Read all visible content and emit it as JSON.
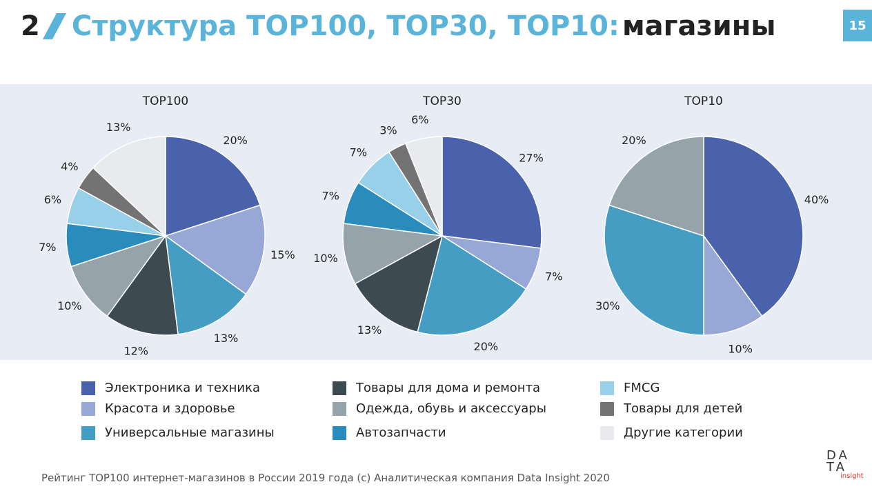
{
  "header": {
    "number": "2",
    "title_blue": "Структура TOP100, TOP30, TOP10:",
    "title_dark": "магазины",
    "page": "15"
  },
  "colors": {
    "electronics": "#4a62ac",
    "beauty": "#98a8d6",
    "universal": "#469dc3",
    "home": "#3e4a52",
    "clothes": "#97a3ab",
    "auto": "#2a8bbd",
    "fmcg": "#98d0ea",
    "kids": "#737373",
    "other": "#e8eaed",
    "accent": "#5ab4d9",
    "panel": "#e8edf5"
  },
  "legend": [
    {
      "label": "Электроника и техника",
      "color": "#4a62ac"
    },
    {
      "label": "Красота и здоровье",
      "color": "#98a8d6"
    },
    {
      "label": "Универсальные магазины",
      "color": "#469dc3"
    },
    {
      "label": "Товары для дома и ремонта",
      "color": "#3e4a52"
    },
    {
      "label": "Одежда, обувь и аксессуары",
      "color": "#97a3ab"
    },
    {
      "label": "Автозапчасти",
      "color": "#2a8bbd"
    },
    {
      "label": "FMCG",
      "color": "#98d0ea"
    },
    {
      "label": "Товары для детей",
      "color": "#737373"
    },
    {
      "label": "Другие категории",
      "color": "#e8eaed"
    }
  ],
  "chart_data": [
    {
      "type": "pie",
      "title": "TOP100",
      "categories": [
        "Электроника и техника",
        "Красота и здоровье",
        "Универсальные магазины",
        "Товары для дома и ремонта",
        "Одежда, обувь и аксессуары",
        "Автозапчасти",
        "FMCG",
        "Товары для детей",
        "Другие категории"
      ],
      "values": [
        20,
        15,
        13,
        12,
        10,
        7,
        6,
        4,
        13
      ],
      "labels": [
        "20%",
        "15%",
        "13%",
        "12%",
        "10%",
        "7%",
        "6%",
        "4%",
        "13%"
      ]
    },
    {
      "type": "pie",
      "title": "TOP30",
      "categories": [
        "Электроника и техника",
        "Красота и здоровье",
        "Универсальные магазины",
        "Товары для дома и ремонта",
        "Одежда, обувь и аксессуары",
        "Автозапчасти",
        "FMCG",
        "Товары для детей",
        "Другие категории"
      ],
      "values": [
        27,
        7,
        20,
        13,
        10,
        7,
        7,
        3,
        6
      ],
      "labels": [
        "27%",
        "7%",
        "20%",
        "13%",
        "10%",
        "7%",
        "7%",
        "3%",
        "6%"
      ]
    },
    {
      "type": "pie",
      "title": "TOP10",
      "categories": [
        "Электроника и техника",
        "Красота и здоровье",
        "Универсальные магазины",
        "Одежда, обувь и аксессуары"
      ],
      "values": [
        40,
        10,
        30,
        20
      ],
      "labels": [
        "40%",
        "10%",
        "30%",
        "20%"
      ]
    }
  ],
  "footer": "Рейтинг TOP100 интернет-магазинов в России 2019 года (с) Аналитическая компания Data Insight 2020",
  "logo": {
    "line1": "DA",
    "line2": "TA",
    "sub": "insight"
  }
}
